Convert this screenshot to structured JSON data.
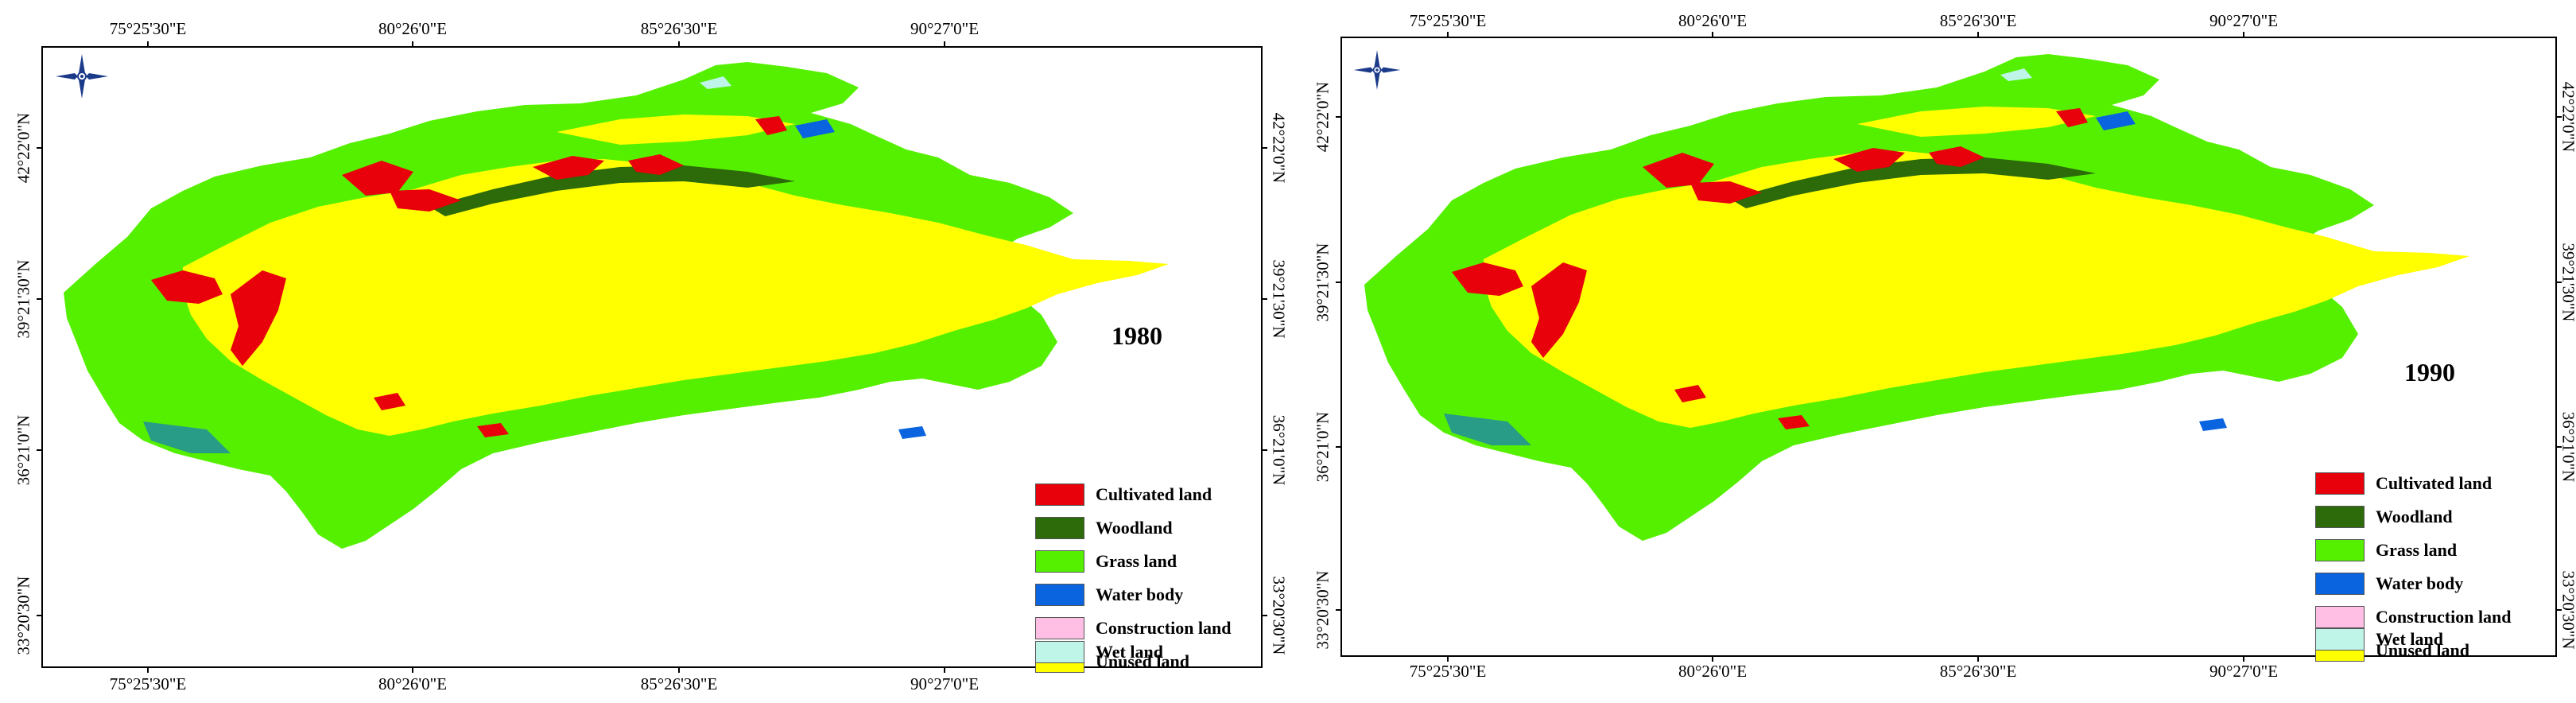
{
  "maps": [
    {
      "year": "1980",
      "top_ticks": [
        "75°25'30\"E",
        "80°26'0\"E",
        "85°26'30\"E",
        "90°27'0\"E"
      ],
      "bottom_ticks": [
        "75°25'30\"E",
        "80°26'0\"E",
        "85°26'30\"E",
        "90°27'0\"E"
      ],
      "left_ticks": [
        "42°22'0\"N",
        "39°21'30\"N",
        "36°21'0\"N",
        "33°20'30\"N"
      ],
      "right_ticks": [
        "42°22'0\"N",
        "39°21'30\"N",
        "36°21'0\"N",
        "33°20'30\"N"
      ]
    },
    {
      "year": "1990",
      "top_ticks": [
        "75°25'30\"E",
        "80°26'0\"E",
        "85°26'30\"E",
        "90°27'0\"E"
      ],
      "bottom_ticks": [
        "75°25'30\"E",
        "80°26'0\"E",
        "85°26'30\"E",
        "90°27'0\"E"
      ],
      "left_ticks": [
        "42°22'0\"N",
        "39°21'30\"N",
        "36°21'0\"N",
        "33°20'30\"N"
      ],
      "right_ticks": [
        "42°22'0\"N",
        "39°21'30\"N",
        "36°21'0\"N",
        "33°20'30\"N"
      ]
    }
  ],
  "legend": [
    {
      "label": "Cultivated land",
      "color": "#e8000b"
    },
    {
      "label": "Woodland",
      "color": "#2d6a0a"
    },
    {
      "label": "Grass land",
      "color": "#55f000"
    },
    {
      "label": "Water body",
      "color": "#0a64e0"
    },
    {
      "label": "Construction land",
      "color": "#ffbfe4"
    },
    {
      "label": "Unused land",
      "color": "#ffff00"
    },
    {
      "label": "Wet land",
      "color": "#bff5e8"
    }
  ]
}
